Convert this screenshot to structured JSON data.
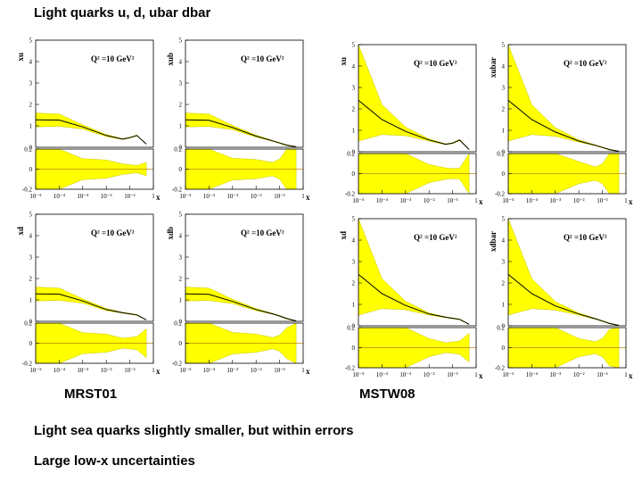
{
  "title": "Light quarks u, d, ubar dbar",
  "label_left": "MRST01",
  "label_right": "MSTW08",
  "bullet1": "Light sea quarks slightly smaller, but within errors",
  "bullet2": "Large low-x uncertainties",
  "colors": {
    "band": "#ffff00",
    "central": "#000000",
    "ratio_line": "#b8860b",
    "frame": "#000000"
  },
  "chart_data": [
    {
      "type": "area",
      "group": "MRST01",
      "ylabel": "xu",
      "annotation": "Q² =10 GeV²",
      "xlabel": "x",
      "xscale": "log",
      "xlim": [
        1e-05,
        1
      ],
      "ylim": [
        0,
        5
      ],
      "ratio_ylim": [
        -0.2,
        0.2
      ],
      "x": [
        1e-05,
        0.0001,
        0.001,
        0.01,
        0.05,
        0.1,
        0.2,
        0.5
      ],
      "central": [
        1.28,
        1.27,
        0.95,
        0.55,
        0.38,
        0.45,
        0.55,
        0.15
      ],
      "band_upper": [
        1.6,
        1.55,
        1.05,
        0.6,
        0.4,
        0.47,
        0.57,
        0.16
      ],
      "band_lower": [
        0.95,
        0.98,
        0.85,
        0.5,
        0.36,
        0.43,
        0.53,
        0.14
      ]
    },
    {
      "type": "area",
      "group": "MRST01",
      "ylabel": "xub",
      "annotation": "Q² =10 GeV²",
      "xlabel": "x",
      "xscale": "log",
      "xlim": [
        1e-05,
        1
      ],
      "ylim": [
        0,
        5
      ],
      "ratio_ylim": [
        -0.2,
        0.2
      ],
      "x": [
        1e-05,
        0.0001,
        0.001,
        0.01,
        0.05,
        0.1,
        0.2,
        0.5
      ],
      "central": [
        1.28,
        1.26,
        0.92,
        0.52,
        0.3,
        0.2,
        0.1,
        0.02
      ],
      "band_upper": [
        1.6,
        1.55,
        1.02,
        0.57,
        0.32,
        0.22,
        0.12,
        0.03
      ],
      "band_lower": [
        0.95,
        0.97,
        0.82,
        0.47,
        0.28,
        0.18,
        0.08,
        0.01
      ]
    },
    {
      "type": "area",
      "group": "MRST01",
      "ylabel": "xd",
      "annotation": "Q² =10 GeV²",
      "xlabel": "x",
      "xscale": "log",
      "xlim": [
        1e-05,
        1
      ],
      "ylim": [
        0,
        5
      ],
      "ratio_ylim": [
        -0.2,
        0.2
      ],
      "x": [
        1e-05,
        0.0001,
        0.001,
        0.01,
        0.05,
        0.1,
        0.2,
        0.5
      ],
      "central": [
        1.28,
        1.27,
        0.95,
        0.55,
        0.4,
        0.35,
        0.3,
        0.07
      ],
      "band_upper": [
        1.6,
        1.55,
        1.05,
        0.6,
        0.42,
        0.37,
        0.32,
        0.08
      ],
      "band_lower": [
        0.95,
        0.98,
        0.85,
        0.5,
        0.38,
        0.33,
        0.28,
        0.06
      ]
    },
    {
      "type": "area",
      "group": "MRST01",
      "ylabel": "xdb",
      "annotation": "Q² =10 GeV²",
      "xlabel": "x",
      "xscale": "log",
      "xlim": [
        1e-05,
        1
      ],
      "ylim": [
        0,
        5
      ],
      "ratio_ylim": [
        -0.2,
        0.2
      ],
      "x": [
        1e-05,
        0.0001,
        0.001,
        0.01,
        0.05,
        0.1,
        0.2,
        0.5
      ],
      "central": [
        1.28,
        1.26,
        0.93,
        0.55,
        0.35,
        0.25,
        0.13,
        0.02
      ],
      "band_upper": [
        1.6,
        1.55,
        1.03,
        0.6,
        0.37,
        0.27,
        0.15,
        0.03
      ],
      "band_lower": [
        0.95,
        0.97,
        0.83,
        0.5,
        0.33,
        0.23,
        0.11,
        0.01
      ]
    },
    {
      "type": "area",
      "group": "MSTW08",
      "ylabel": "xu",
      "annotation": "Q² =10 GeV²",
      "xlabel": "x",
      "xscale": "log",
      "xlim": [
        1e-05,
        1
      ],
      "ylim": [
        0,
        5
      ],
      "ratio_ylim": [
        -0.2,
        0.2
      ],
      "x": [
        1e-05,
        0.0001,
        0.001,
        0.01,
        0.05,
        0.1,
        0.2,
        0.5
      ],
      "central": [
        2.4,
        1.5,
        0.95,
        0.55,
        0.35,
        0.4,
        0.55,
        0.1
      ],
      "band_upper": [
        5.0,
        2.2,
        1.15,
        0.6,
        0.37,
        0.42,
        0.58,
        0.12
      ],
      "band_lower": [
        0.5,
        0.8,
        0.75,
        0.5,
        0.33,
        0.38,
        0.52,
        0.08
      ]
    },
    {
      "type": "area",
      "group": "MSTW08",
      "ylabel": "xubar",
      "annotation": "Q² =10 GeV²",
      "xlabel": "x",
      "xscale": "log",
      "xlim": [
        1e-05,
        1
      ],
      "ylim": [
        0,
        5
      ],
      "ratio_ylim": [
        -0.2,
        0.2
      ],
      "x": [
        1e-05,
        0.0001,
        0.001,
        0.01,
        0.05,
        0.1,
        0.2,
        0.5
      ],
      "central": [
        2.4,
        1.5,
        0.92,
        0.5,
        0.3,
        0.2,
        0.1,
        0.02
      ],
      "band_upper": [
        5.0,
        2.2,
        1.12,
        0.56,
        0.32,
        0.22,
        0.12,
        0.03
      ],
      "band_lower": [
        0.5,
        0.8,
        0.72,
        0.45,
        0.28,
        0.18,
        0.08,
        0.01
      ]
    },
    {
      "type": "area",
      "group": "MSTW08",
      "ylabel": "xd",
      "annotation": "Q² =10 GeV²",
      "xlabel": "x",
      "xscale": "log",
      "xlim": [
        1e-05,
        1
      ],
      "ylim": [
        0,
        5
      ],
      "ratio_ylim": [
        -0.2,
        0.2
      ],
      "x": [
        1e-05,
        0.0001,
        0.001,
        0.01,
        0.05,
        0.1,
        0.2,
        0.5
      ],
      "central": [
        2.4,
        1.5,
        0.95,
        0.55,
        0.4,
        0.35,
        0.3,
        0.07
      ],
      "band_upper": [
        5.0,
        2.2,
        1.15,
        0.6,
        0.42,
        0.37,
        0.32,
        0.08
      ],
      "band_lower": [
        0.5,
        0.8,
        0.75,
        0.5,
        0.38,
        0.33,
        0.28,
        0.06
      ]
    },
    {
      "type": "area",
      "group": "MSTW08",
      "ylabel": "xdbar",
      "annotation": "Q² =10 GeV²",
      "xlabel": "x",
      "xscale": "log",
      "xlim": [
        1e-05,
        1
      ],
      "ylim": [
        0,
        5
      ],
      "ratio_ylim": [
        -0.2,
        0.2
      ],
      "x": [
        1e-05,
        0.0001,
        0.001,
        0.01,
        0.05,
        0.1,
        0.2,
        0.5
      ],
      "central": [
        2.4,
        1.5,
        0.93,
        0.55,
        0.33,
        0.22,
        0.11,
        0.02
      ],
      "band_upper": [
        5.0,
        2.2,
        1.13,
        0.6,
        0.35,
        0.24,
        0.13,
        0.03
      ],
      "band_lower": [
        0.5,
        0.8,
        0.73,
        0.5,
        0.31,
        0.2,
        0.09,
        0.01
      ]
    }
  ],
  "main_ticks": [
    "0",
    "1",
    "2",
    "3",
    "4",
    "5"
  ],
  "ratio_ticks": [
    "0.2",
    "0",
    "-0.2"
  ],
  "x_ticks": [
    "10⁻⁵",
    "10⁻⁴",
    "10⁻³",
    "10⁻²",
    "10⁻¹",
    "1"
  ]
}
